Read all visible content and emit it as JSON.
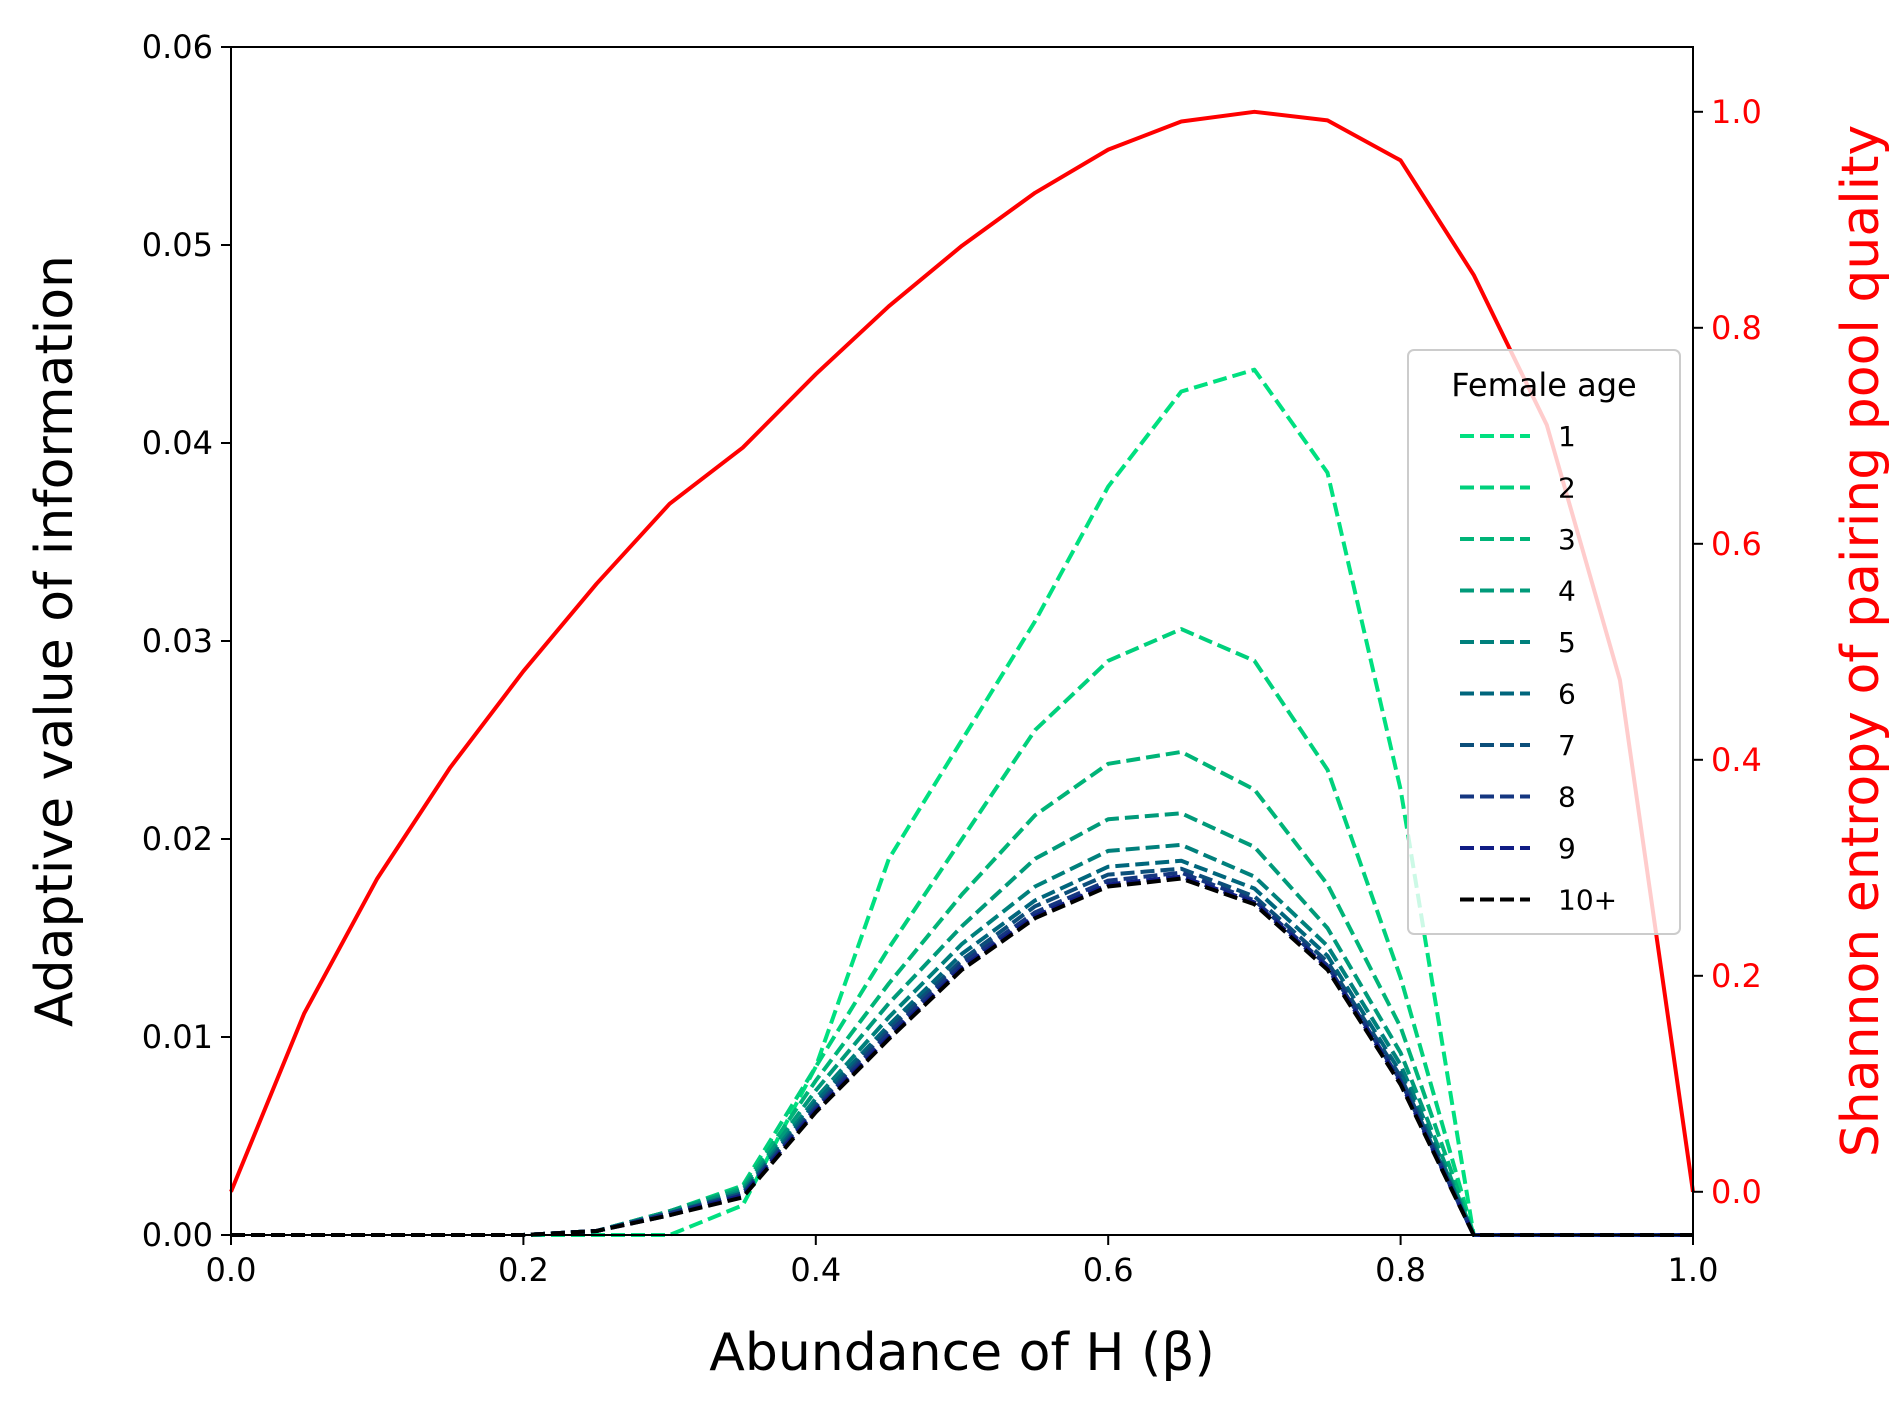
{
  "chart_data": {
    "type": "line",
    "xlabel": "Abundance of H (β)",
    "ylabel": "Adaptive value of information",
    "y2label": "Shannon entropy of pairing pool quality",
    "xlim": [
      0.0,
      1.0
    ],
    "ylim": [
      0.0,
      0.06
    ],
    "y2lim": [
      -0.04,
      1.06
    ],
    "x_ticks": [
      "0.0",
      "0.2",
      "0.4",
      "0.6",
      "0.8",
      "1.0"
    ],
    "y_ticks": [
      "0.00",
      "0.01",
      "0.02",
      "0.03",
      "0.04",
      "0.05",
      "0.06"
    ],
    "y2_ticks": [
      "0.0",
      "0.2",
      "0.4",
      "0.6",
      "0.8",
      "1.0"
    ],
    "x": [
      0.0,
      0.05,
      0.1,
      0.15,
      0.2,
      0.25,
      0.3,
      0.35,
      0.4,
      0.45,
      0.5,
      0.55,
      0.6,
      0.65,
      0.7,
      0.75,
      0.8,
      0.85,
      0.9,
      0.95,
      1.0
    ],
    "legend": {
      "title": "Female age",
      "placement": "center-right"
    },
    "grid": false,
    "secondary_axis_color": "#ff0000",
    "entropy_series": {
      "color": "#ff0000",
      "axis": "right",
      "values": [
        0.0,
        0.165,
        0.29,
        0.393,
        0.482,
        0.563,
        0.637,
        0.689,
        0.757,
        0.82,
        0.876,
        0.925,
        0.965,
        0.991,
        1.0,
        0.992,
        0.955,
        0.849,
        0.71,
        0.474,
        0.0
      ]
    },
    "series": [
      {
        "name": "1",
        "color": "#00e080",
        "values": [
          0,
          0,
          0,
          0,
          0,
          0,
          0,
          0.0015,
          0.0085,
          0.019,
          0.025,
          0.031,
          0.0378,
          0.0426,
          0.0437,
          0.0385,
          0.0225,
          0.0,
          0,
          0,
          0
        ]
      },
      {
        "name": "2",
        "color": "#00d07c",
        "values": [
          0,
          0,
          0,
          0,
          0,
          0.0002,
          0.0012,
          0.0025,
          0.0085,
          0.0145,
          0.02,
          0.0255,
          0.029,
          0.0306,
          0.029,
          0.0235,
          0.013,
          0.0,
          0,
          0,
          0
        ]
      },
      {
        "name": "3",
        "color": "#00b478",
        "values": [
          0,
          0,
          0,
          0,
          0,
          0.0002,
          0.0012,
          0.0024,
          0.0078,
          0.0127,
          0.0172,
          0.0212,
          0.0238,
          0.0244,
          0.0225,
          0.0177,
          0.0105,
          0.0,
          0,
          0,
          0
        ]
      },
      {
        "name": "4",
        "color": "#009a7a",
        "values": [
          0,
          0,
          0,
          0,
          0,
          0.0002,
          0.0012,
          0.0023,
          0.0073,
          0.0117,
          0.0156,
          0.019,
          0.021,
          0.0213,
          0.0196,
          0.0155,
          0.0092,
          0.0,
          0,
          0,
          0
        ]
      },
      {
        "name": "5",
        "color": "#00807c",
        "values": [
          0,
          0,
          0,
          0,
          0,
          0.0002,
          0.0011,
          0.0022,
          0.0069,
          0.011,
          0.0147,
          0.0176,
          0.0194,
          0.0197,
          0.0181,
          0.0146,
          0.0086,
          0.0,
          0,
          0,
          0
        ]
      },
      {
        "name": "6",
        "color": "#00667c",
        "values": [
          0,
          0,
          0,
          0,
          0,
          0.0002,
          0.0011,
          0.0021,
          0.0067,
          0.0106,
          0.0142,
          0.0169,
          0.0186,
          0.0189,
          0.0175,
          0.0141,
          0.0082,
          0.0,
          0,
          0,
          0
        ]
      },
      {
        "name": "7",
        "color": "#0c4e7a",
        "values": [
          0,
          0,
          0,
          0,
          0,
          0.0002,
          0.0011,
          0.0021,
          0.0065,
          0.0104,
          0.0139,
          0.0166,
          0.0182,
          0.0185,
          0.0171,
          0.0138,
          0.008,
          0.0,
          0,
          0,
          0
        ]
      },
      {
        "name": "8",
        "color": "#143680",
        "values": [
          0,
          0,
          0,
          0,
          0,
          0.0002,
          0.0011,
          0.002,
          0.0064,
          0.0102,
          0.0137,
          0.0163,
          0.0179,
          0.0183,
          0.0169,
          0.0136,
          0.0078,
          0.0,
          0,
          0,
          0
        ]
      },
      {
        "name": "9",
        "color": "#101c84",
        "values": [
          0,
          0,
          0,
          0,
          0,
          0.0002,
          0.001,
          0.002,
          0.0063,
          0.01,
          0.0135,
          0.0161,
          0.0177,
          0.0181,
          0.0168,
          0.0135,
          0.0077,
          0.0,
          0,
          0,
          0
        ]
      },
      {
        "name": "10+",
        "color": "#000000",
        "values": [
          0,
          0,
          0,
          0,
          0,
          0.0002,
          0.001,
          0.0019,
          0.0062,
          0.0099,
          0.0134,
          0.016,
          0.0176,
          0.018,
          0.0167,
          0.0134,
          0.0076,
          0.0,
          0,
          0,
          0
        ]
      }
    ]
  }
}
